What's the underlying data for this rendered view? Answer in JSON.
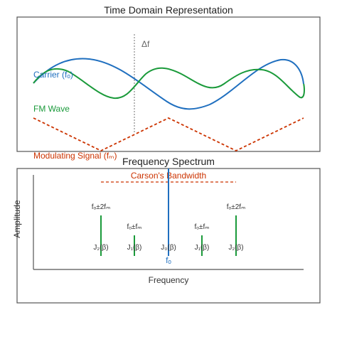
{
  "top_panel": {
    "title": "Time Domain Representation",
    "delta_label": "Δf",
    "carrier_label": "Carrier (fₒ)",
    "fm_label": "FM Wave",
    "modulating_label": "Modulating Signal (fₘ)"
  },
  "bottom_panel": {
    "title": "Frequency Spectrum",
    "bandwidth_label": "Carson's Bandwidth",
    "y_axis_label": "Amplitude",
    "x_axis_label": "Frequency",
    "center_label": "fₒ",
    "sidebands": [
      {
        "freq_label": "fₒ±2fₘ",
        "bessel_label": "J₂(β)"
      },
      {
        "freq_label": "fₒ±fₘ",
        "bessel_label": "J₁(β)"
      },
      {
        "freq_label": "",
        "bessel_label": "J₀(β)"
      },
      {
        "freq_label": "fₒ±fₘ",
        "bessel_label": "J₁(β)"
      },
      {
        "freq_label": "fₒ±2fₘ",
        "bessel_label": "J₂(β)"
      }
    ]
  },
  "colors": {
    "carrier": "#1f6fbf",
    "fm": "#1a9a3a",
    "modulating": "#cc3300",
    "frame": "#555555"
  }
}
